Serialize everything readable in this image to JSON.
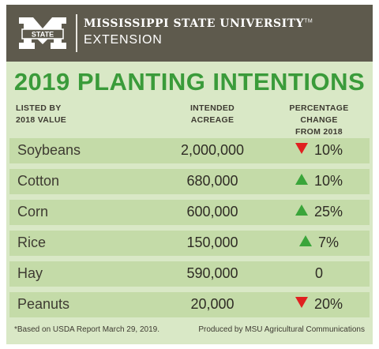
{
  "header": {
    "org_line1": "MISSISSIPPI STATE UNIVERSITY",
    "org_tm": "TM",
    "org_line2": "EXTENSION",
    "logo_text": "STATE"
  },
  "colors": {
    "header_bg": "#5e5a4d",
    "panel_bg": "#d9e8c6",
    "title_green": "#3a9b3a",
    "up_arrow": "#3aa53a",
    "down_arrow": "#e02020"
  },
  "chart_data": {
    "type": "table",
    "title": "2019 PLANTING INTENTIONS",
    "columns": [
      {
        "line1": "LISTED BY",
        "line2": "2018 VALUE"
      },
      {
        "line1": "INTENDED",
        "line2": "ACREAGE"
      },
      {
        "line1": "PERCENTAGE CHANGE",
        "line2": "FROM 2018"
      }
    ],
    "rows": [
      {
        "crop": "Soybeans",
        "acreage": "2,000,000",
        "direction": "down",
        "change": "10%"
      },
      {
        "crop": "Cotton",
        "acreage": "680,000",
        "direction": "up",
        "change": "10%"
      },
      {
        "crop": "Corn",
        "acreage": "600,000",
        "direction": "up",
        "change": "25%"
      },
      {
        "crop": "Rice",
        "acreage": "150,000",
        "direction": "up",
        "change": "7%"
      },
      {
        "crop": "Hay",
        "acreage": "590,000",
        "direction": "none",
        "change": "0"
      },
      {
        "crop": "Peanuts",
        "acreage": "20,000",
        "direction": "down",
        "change": "20%"
      }
    ],
    "footnote": "*Based on USDA Report March 29, 2019.",
    "credit": "Produced by MSU Agricultural Communications"
  }
}
